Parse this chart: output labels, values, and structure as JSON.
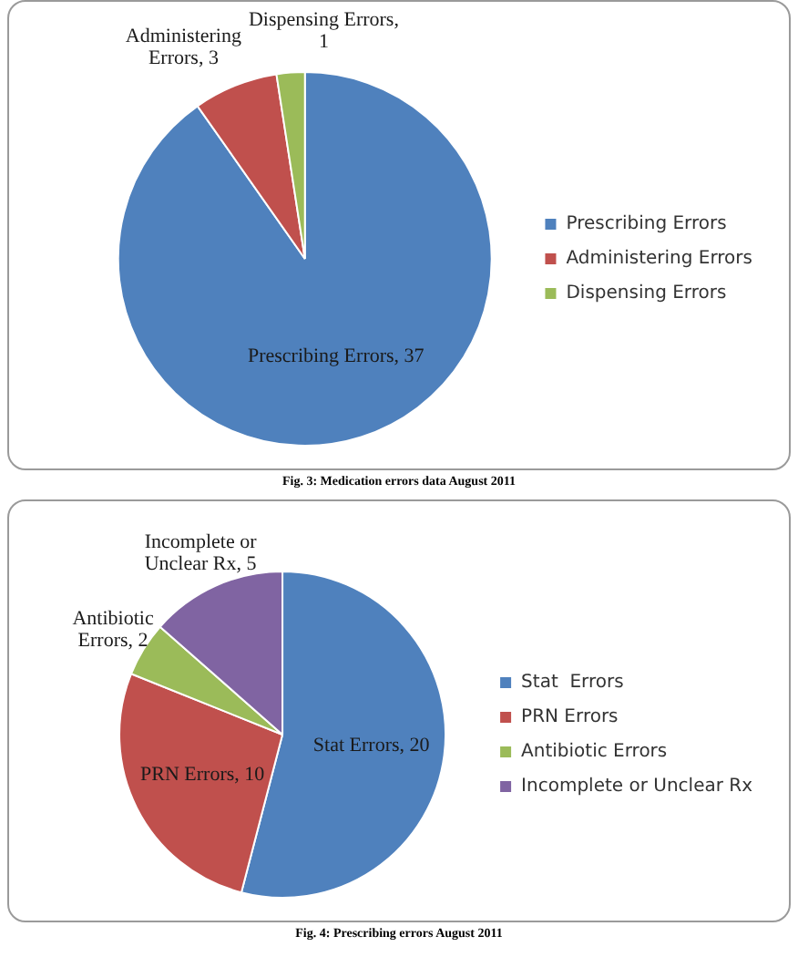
{
  "chart_data": [
    {
      "type": "pie",
      "categories": [
        "Prescribing Errors",
        "Administering Errors",
        "Dispensing Errors"
      ],
      "values": [
        37,
        3,
        1
      ],
      "colors": [
        "#4f81bd",
        "#c0504d",
        "#9bbb59"
      ],
      "value_labels": [
        "Prescribing Errors, 37",
        "Administering Errors, 3",
        "Dispensing Errors, 1"
      ],
      "legend": "right",
      "annotations": [
        "Fig. 3: Medication errors data August 2011"
      ]
    },
    {
      "type": "pie",
      "categories": [
        "Stat  Errors",
        "PRN Errors",
        "Antibiotic Errors",
        "Incomplete or Unclear Rx"
      ],
      "values": [
        20,
        10,
        2,
        5
      ],
      "colors": [
        "#4f81bd",
        "#c0504d",
        "#9bbb59",
        "#8064a2"
      ],
      "value_labels": [
        "Stat  Errors, 20",
        "PRN Errors, 10",
        "Antibiotic Errors, 2",
        "Incomplete or Unclear Rx, 5"
      ],
      "legend": "right",
      "annotations": [
        "Fig. 4: Prescribing errors August 2011"
      ]
    }
  ]
}
